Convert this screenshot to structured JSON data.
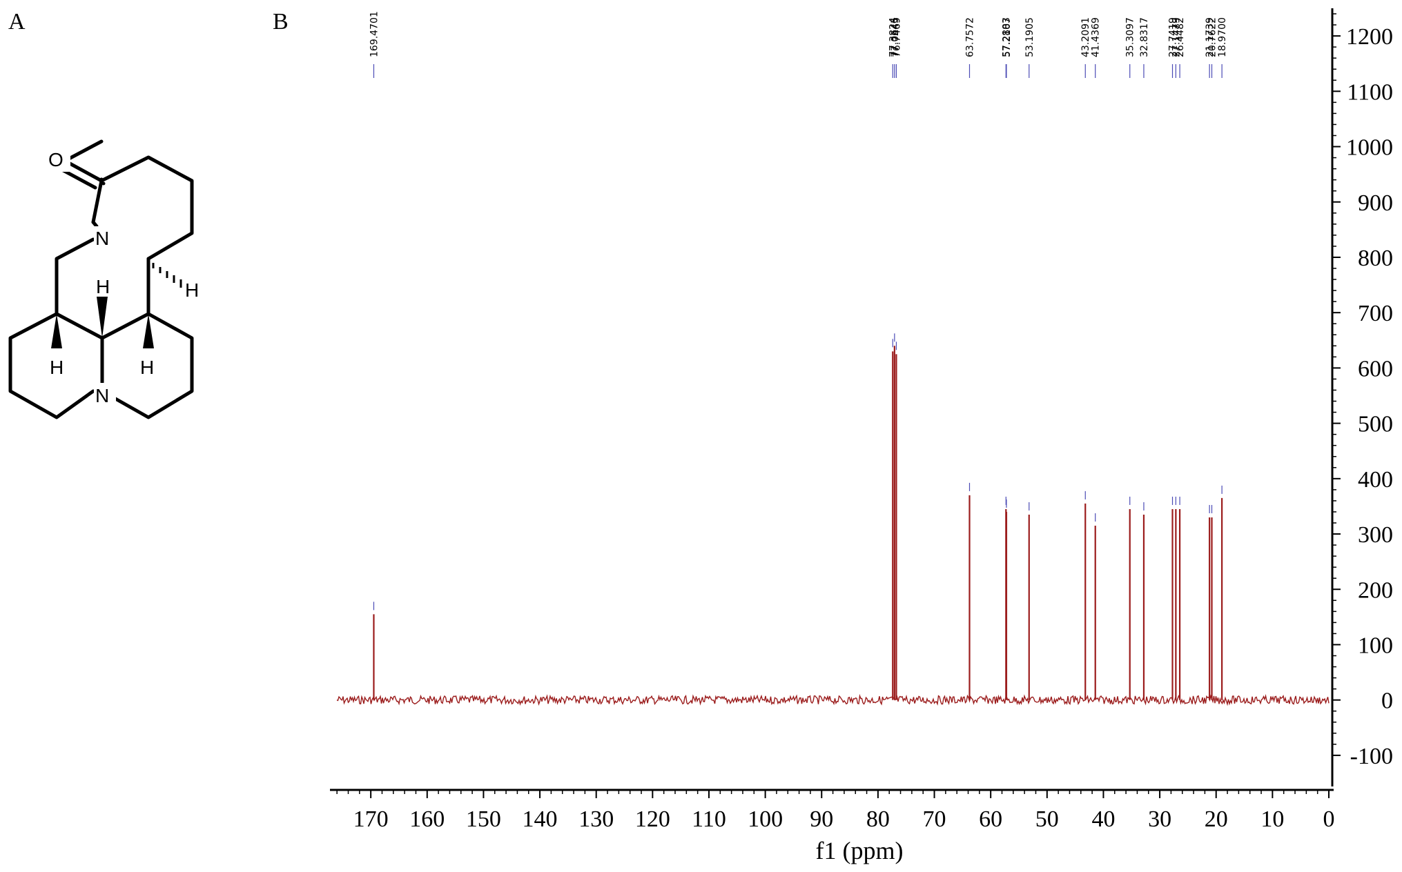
{
  "panels": {
    "a": "A",
    "b": "B"
  },
  "molecule": {
    "atoms": {
      "oxygen": "O",
      "amide_n": "N",
      "amine_n": "N",
      "h_wedge_top": "H",
      "h_left": "H",
      "h_right": "H",
      "h_dash": "H"
    }
  },
  "chart_data": {
    "type": "line",
    "title": "",
    "xlabel": "f1 (ppm)",
    "ylabel": "",
    "xlim": [
      0,
      177
    ],
    "x_reversed": true,
    "ylim": [
      -150,
      1250
    ],
    "x_ticks": [
      170,
      160,
      150,
      140,
      130,
      120,
      110,
      100,
      90,
      80,
      70,
      60,
      50,
      40,
      30,
      20,
      10,
      0
    ],
    "y_ticks": [
      1200,
      1100,
      1000,
      900,
      800,
      700,
      600,
      500,
      400,
      300,
      200,
      100,
      0,
      -100
    ],
    "y_axis_side": "right",
    "grid": false,
    "line_color": "#9b1c1c",
    "label_color": "#4a4ab5",
    "peaks": [
      {
        "ppm": 169.4701,
        "label": "169.4701",
        "height": 155
      },
      {
        "ppm": 77.3824,
        "label": "77.3824",
        "height": 630
      },
      {
        "ppm": 77.0645,
        "label": "77.0645",
        "height": 640
      },
      {
        "ppm": 76.7469,
        "label": "76.7469",
        "height": 625
      },
      {
        "ppm": 63.7572,
        "label": "63.7572",
        "height": 370
      },
      {
        "ppm": 57.2883,
        "label": "57.2883",
        "height": 345
      },
      {
        "ppm": 57.2107,
        "label": "57.2107",
        "height": 340
      },
      {
        "ppm": 53.1905,
        "label": "53.1905",
        "height": 335
      },
      {
        "ppm": 43.2091,
        "label": "43.2091",
        "height": 355
      },
      {
        "ppm": 41.4369,
        "label": "41.4369",
        "height": 315
      },
      {
        "ppm": 35.3097,
        "label": "35.3097",
        "height": 345
      },
      {
        "ppm": 32.8317,
        "label": "32.8317",
        "height": 335
      },
      {
        "ppm": 27.7419,
        "label": "27.7419",
        "height": 345
      },
      {
        "ppm": 27.1479,
        "label": "27.1479",
        "height": 345
      },
      {
        "ppm": 26.4482,
        "label": "26.4482",
        "height": 345
      },
      {
        "ppm": 21.1739,
        "label": "21.1739",
        "height": 330
      },
      {
        "ppm": 20.7622,
        "label": "20.7622",
        "height": 330
      },
      {
        "ppm": 18.97,
        "label": "18.9700",
        "height": 365
      }
    ]
  }
}
